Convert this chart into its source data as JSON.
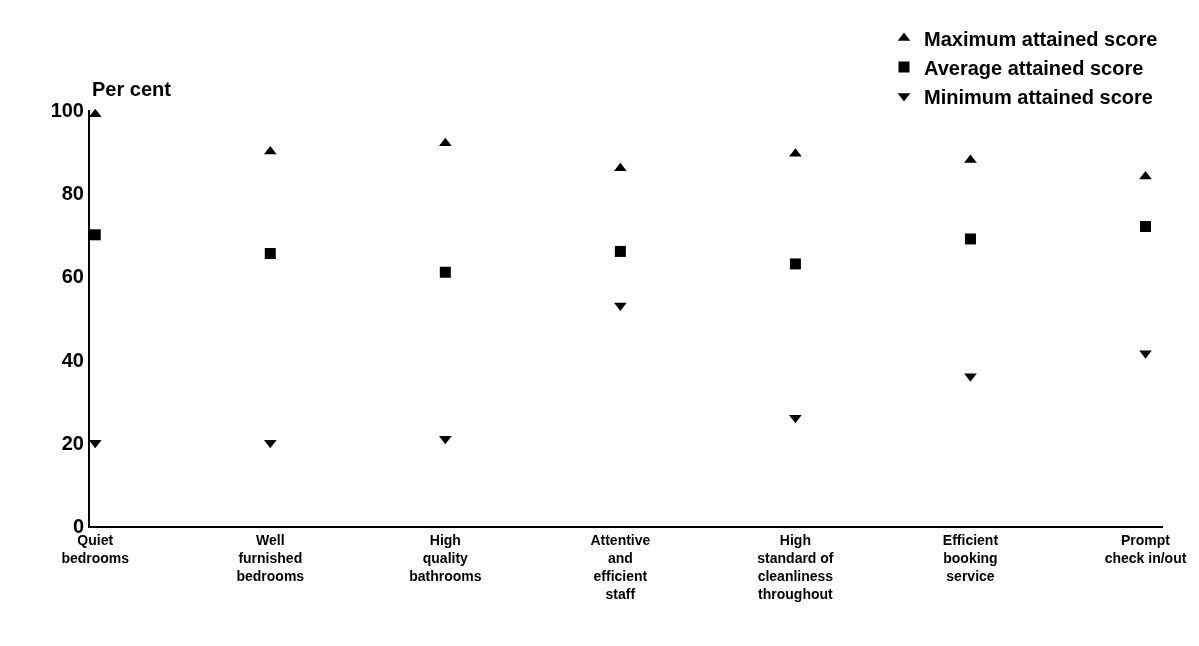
{
  "chart_data": {
    "type": "scatter",
    "ylabel": "Per cent",
    "categories": [
      "Quiet\nbedrooms",
      "Well\nfurnished\nbedrooms",
      "High\nquality\nbathrooms",
      "Attentive\nand\nefficient\nstaff",
      "High\nstandard of\ncleanliness\nthroughout",
      "Efficient\nbooking\nservice",
      "Prompt\ncheck in/out"
    ],
    "series": [
      {
        "name": "Maximum attained score",
        "color": "#000000",
        "marker": "triangle",
        "values": [
          99,
          90,
          92,
          86,
          89.5,
          88,
          84
        ]
      },
      {
        "name": "Average attained score",
        "color": "#000000",
        "marker": "square",
        "values": [
          70,
          65.5,
          61,
          66,
          63,
          69,
          72
        ]
      },
      {
        "name": "Minimum attained score",
        "color": "#000000",
        "marker": "triangle-down",
        "values": [
          20,
          20,
          21,
          53,
          26,
          36,
          41.5
        ]
      }
    ],
    "ylim": [
      0,
      100
    ],
    "yticks": [
      0,
      20,
      40,
      60,
      80,
      100
    ],
    "legend": "top right"
  }
}
